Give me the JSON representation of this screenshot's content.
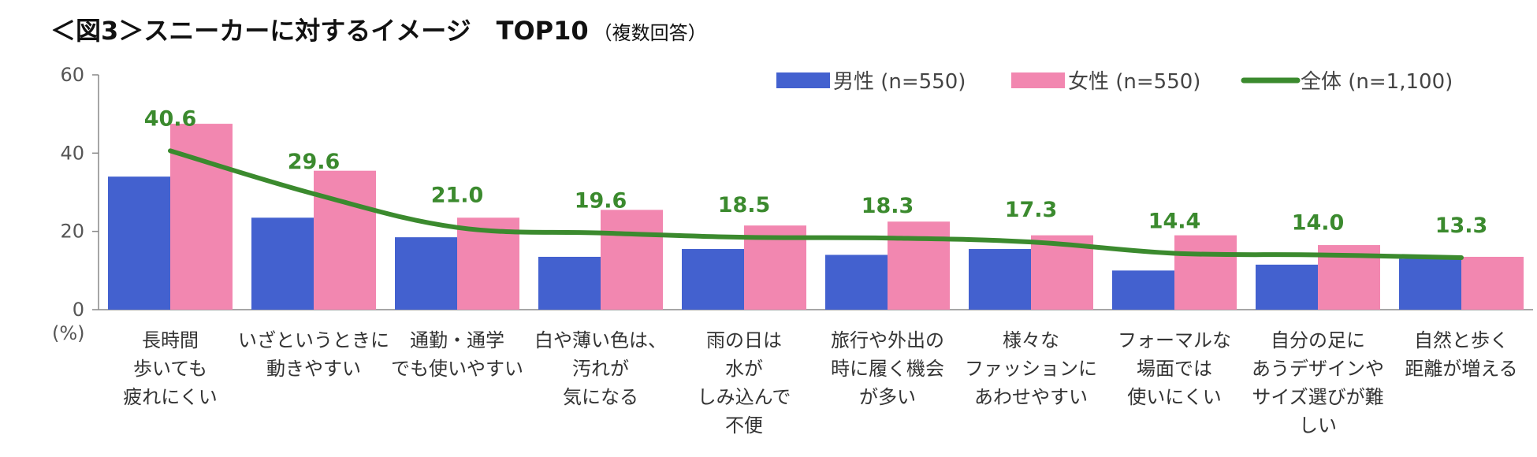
{
  "title": "＜図3＞スニーカーに対するイメージ　TOP10",
  "subtitle": "（複数回答）",
  "chart_data": {
    "type": "bar",
    "title": "＜図3＞スニーカーに対するイメージ　TOP10",
    "unit_label": "(%)",
    "ylim": [
      0,
      60
    ],
    "yticks": [
      "0",
      "20",
      "40",
      "60"
    ],
    "categories": [
      [
        "長時間",
        "歩いても",
        "疲れにくい"
      ],
      [
        "いざというときに",
        "動きやすい"
      ],
      [
        "通勤・通学",
        "でも使いやすい"
      ],
      [
        "白や薄い色は、",
        "汚れが",
        "気になる"
      ],
      [
        "雨の日は",
        "水が",
        "しみ込んで",
        "不便"
      ],
      [
        "旅行や外出の",
        "時に履く機会",
        "が多い"
      ],
      [
        "様々な",
        "ファッションに",
        "あわせやすい"
      ],
      [
        "フォーマルな",
        "場面では",
        "使いにくい"
      ],
      [
        "自分の足に",
        "あうデザインや",
        "サイズ選びが難",
        "しい"
      ],
      [
        "自然と歩く",
        "距離が増える"
      ]
    ],
    "series": [
      {
        "name": "男性 (n=550)",
        "kind": "bar",
        "color": "#4361cf",
        "values": [
          34,
          23.5,
          18.5,
          13.5,
          15.5,
          14,
          15.5,
          10,
          11.5,
          13
        ]
      },
      {
        "name": "女性 (n=550)",
        "kind": "bar",
        "color": "#f287b0",
        "values": [
          47.5,
          35.5,
          23.5,
          25.5,
          21.5,
          22.5,
          19,
          19,
          16.5,
          13.5
        ]
      },
      {
        "name": "全体 (n=1,100)",
        "kind": "line",
        "color": "#3b8a2e",
        "values": [
          40.6,
          29.6,
          21.0,
          19.6,
          18.5,
          18.3,
          17.3,
          14.4,
          14.0,
          13.3
        ],
        "labels": [
          "40.6",
          "29.6",
          "21.0",
          "19.6",
          "18.5",
          "18.3",
          "17.3",
          "14.4",
          "14.0",
          "13.3"
        ]
      }
    ]
  }
}
